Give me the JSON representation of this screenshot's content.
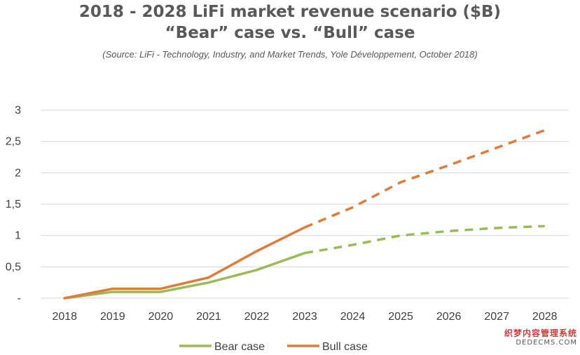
{
  "header": {
    "title_line1": "2018 - 2028 LiFi market revenue scenario ($B)",
    "title_line2": "“Bear” case vs. “Bull” case",
    "source": "(Source: LiFi - Technology, Industry, and Market Trends, Yole Développement, October 2018)"
  },
  "watermark": {
    "line1": "织梦内容管理系统",
    "line2": "DEDECMS.COM"
  },
  "colors": {
    "bear": "#9bbb59",
    "bull": "#e07b39",
    "grid": "#d9d9d9",
    "text": "#404040"
  },
  "chart_data": {
    "type": "line",
    "title": "2018 - 2028 LiFi market revenue scenario ($B)",
    "subtitle": "“Bear” case vs. “Bull” case",
    "categories": [
      "2018",
      "2019",
      "2020",
      "2021",
      "2022",
      "2023",
      "2024",
      "2025",
      "2026",
      "2027",
      "2028"
    ],
    "y_tick_labels": [
      "-",
      "0,5",
      "1",
      "1,5",
      "2",
      "2,5",
      "3"
    ],
    "y_ticks": [
      0,
      0.5,
      1,
      1.5,
      2,
      2.5,
      3
    ],
    "ylim": [
      0,
      3
    ],
    "grid": true,
    "legend_position": "bottom",
    "forecast_from": "2023",
    "series": [
      {
        "name": "Bear case",
        "color": "#9bbb59",
        "values": [
          0,
          0.1,
          0.1,
          0.25,
          0.45,
          0.72,
          0.85,
          1.0,
          1.07,
          1.12,
          1.15
        ]
      },
      {
        "name": "Bull case",
        "color": "#e07b39",
        "values": [
          0,
          0.15,
          0.15,
          0.33,
          0.75,
          1.13,
          1.45,
          1.85,
          2.12,
          2.4,
          2.68
        ]
      }
    ]
  }
}
